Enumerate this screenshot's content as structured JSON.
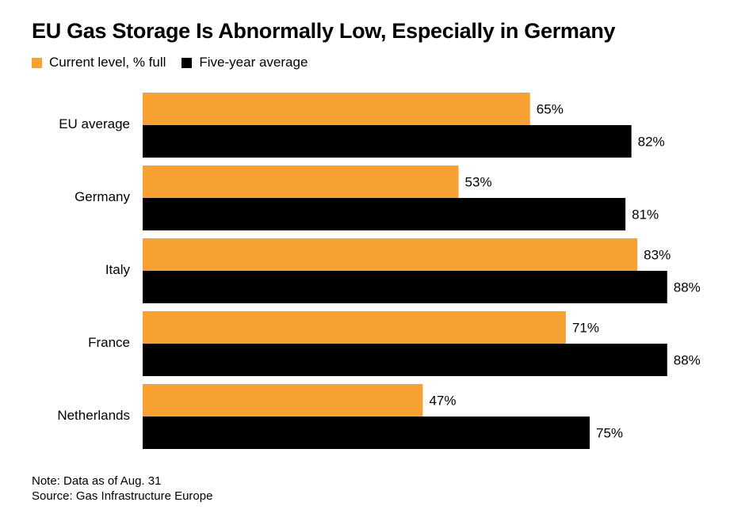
{
  "title": "EU Gas Storage Is Abnormally Low, Especially in Germany",
  "legend": [
    {
      "label": "Current level, % full",
      "color": "#f8a133"
    },
    {
      "label": "Five-year average",
      "color": "#000000"
    }
  ],
  "note": "Note: Data as of Aug. 31",
  "source": "Source: Gas Infrastructure Europe",
  "chart_data": {
    "type": "bar",
    "orientation": "horizontal",
    "categories": [
      "EU average",
      "Germany",
      "Italy",
      "France",
      "Netherlands"
    ],
    "series": [
      {
        "name": "Current level, % full",
        "color": "#f8a133",
        "values": [
          65,
          53,
          83,
          71,
          47
        ]
      },
      {
        "name": "Five-year average",
        "color": "#000000",
        "values": [
          82,
          81,
          88,
          88,
          75
        ]
      }
    ],
    "value_suffix": "%",
    "xlim": [
      0,
      100
    ],
    "grid": false,
    "legend_position": "top-left"
  }
}
